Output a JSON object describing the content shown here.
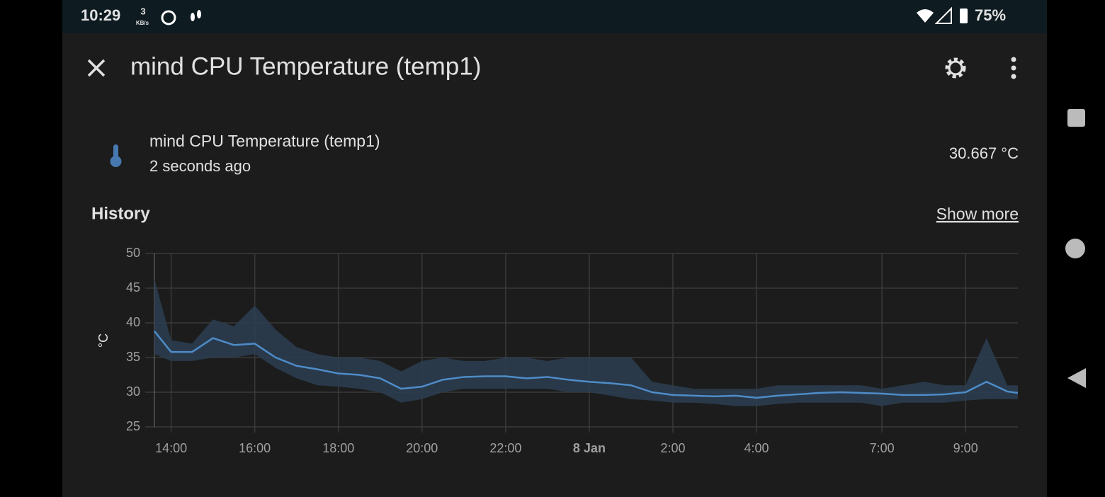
{
  "status_bar": {
    "time": "10:29",
    "speed": "3",
    "speed_unit": "KB/s",
    "battery": "75%"
  },
  "header": {
    "title": "mind CPU Temperature (temp1)"
  },
  "entity": {
    "name": "mind CPU Temperature (temp1)",
    "updated": "2 seconds ago",
    "state": "30.667 °C"
  },
  "history": {
    "title": "History",
    "link": "Show more"
  },
  "chart_data": {
    "type": "line",
    "y_label": "°C",
    "x": [
      13.6,
      14,
      14.5,
      15,
      15.5,
      16,
      16.5,
      17,
      17.5,
      18,
      18.5,
      19,
      19.5,
      20,
      20.5,
      21,
      21.5,
      22,
      22.5,
      23,
      23.5,
      24,
      24.5,
      25,
      25.5,
      26,
      26.5,
      27,
      27.5,
      28,
      28.5,
      29,
      29.5,
      30,
      30.5,
      31,
      31.5,
      32,
      32.5,
      33,
      33.5,
      34,
      34.25
    ],
    "series": [
      {
        "color": "#4e8cc8",
        "values": [
          38.8,
          35.8,
          35.8,
          37.8,
          36.8,
          37.0,
          35.0,
          33.8,
          33.3,
          32.7,
          32.5,
          32.0,
          30.5,
          30.8,
          31.8,
          32.2,
          32.3,
          32.3,
          32.0,
          32.2,
          31.8,
          31.5,
          31.3,
          31.0,
          30.0,
          29.6,
          29.5,
          29.4,
          29.5,
          29.2,
          29.5,
          29.7,
          29.9,
          30.0,
          29.9,
          29.8,
          29.6,
          29.6,
          29.7,
          30.0,
          31.5,
          30.1,
          29.9
        ]
      }
    ],
    "band": {
      "color": "#2c3e52",
      "low": [
        35.5,
        34.5,
        34.5,
        35.0,
        35.0,
        35.5,
        33.5,
        32.0,
        31.0,
        30.8,
        30.5,
        30.0,
        28.5,
        29.0,
        30.0,
        30.5,
        30.5,
        30.5,
        30.5,
        30.5,
        30.0,
        30.0,
        29.5,
        29.0,
        28.8,
        28.5,
        28.5,
        28.3,
        28.0,
        28.0,
        28.3,
        28.5,
        28.5,
        28.5,
        28.5,
        28.0,
        28.5,
        28.5,
        28.5,
        28.8,
        29.0,
        29.0,
        29.0
      ],
      "high": [
        46.3,
        37.5,
        37.0,
        40.5,
        39.5,
        42.5,
        39.0,
        36.5,
        35.5,
        35.0,
        35.0,
        34.5,
        33.0,
        34.5,
        35.0,
        34.5,
        34.5,
        35.0,
        35.0,
        34.5,
        35.0,
        35.0,
        35.0,
        35.0,
        31.5,
        31.0,
        30.5,
        30.5,
        30.5,
        30.5,
        31.0,
        31.0,
        31.0,
        31.0,
        31.0,
        30.5,
        31.0,
        31.5,
        31.0,
        31.0,
        37.8,
        31.0,
        31.0
      ]
    },
    "xlim": [
      13.6,
      34.25
    ],
    "ylim": [
      25,
      50
    ],
    "yticks": [
      25,
      30,
      35,
      40,
      45,
      50
    ],
    "xticks": [
      {
        "value": 14,
        "label": "14:00"
      },
      {
        "value": 16,
        "label": "16:00"
      },
      {
        "value": 18,
        "label": "18:00"
      },
      {
        "value": 20,
        "label": "20:00"
      },
      {
        "value": 22,
        "label": "22:00"
      },
      {
        "value": 24,
        "label": "8 Jan",
        "bold": true
      },
      {
        "value": 26,
        "label": "2:00"
      },
      {
        "value": 28,
        "label": "4:00"
      },
      {
        "value": 31,
        "label": "7:00"
      },
      {
        "value": 33,
        "label": "9:00"
      }
    ],
    "grid": true
  }
}
